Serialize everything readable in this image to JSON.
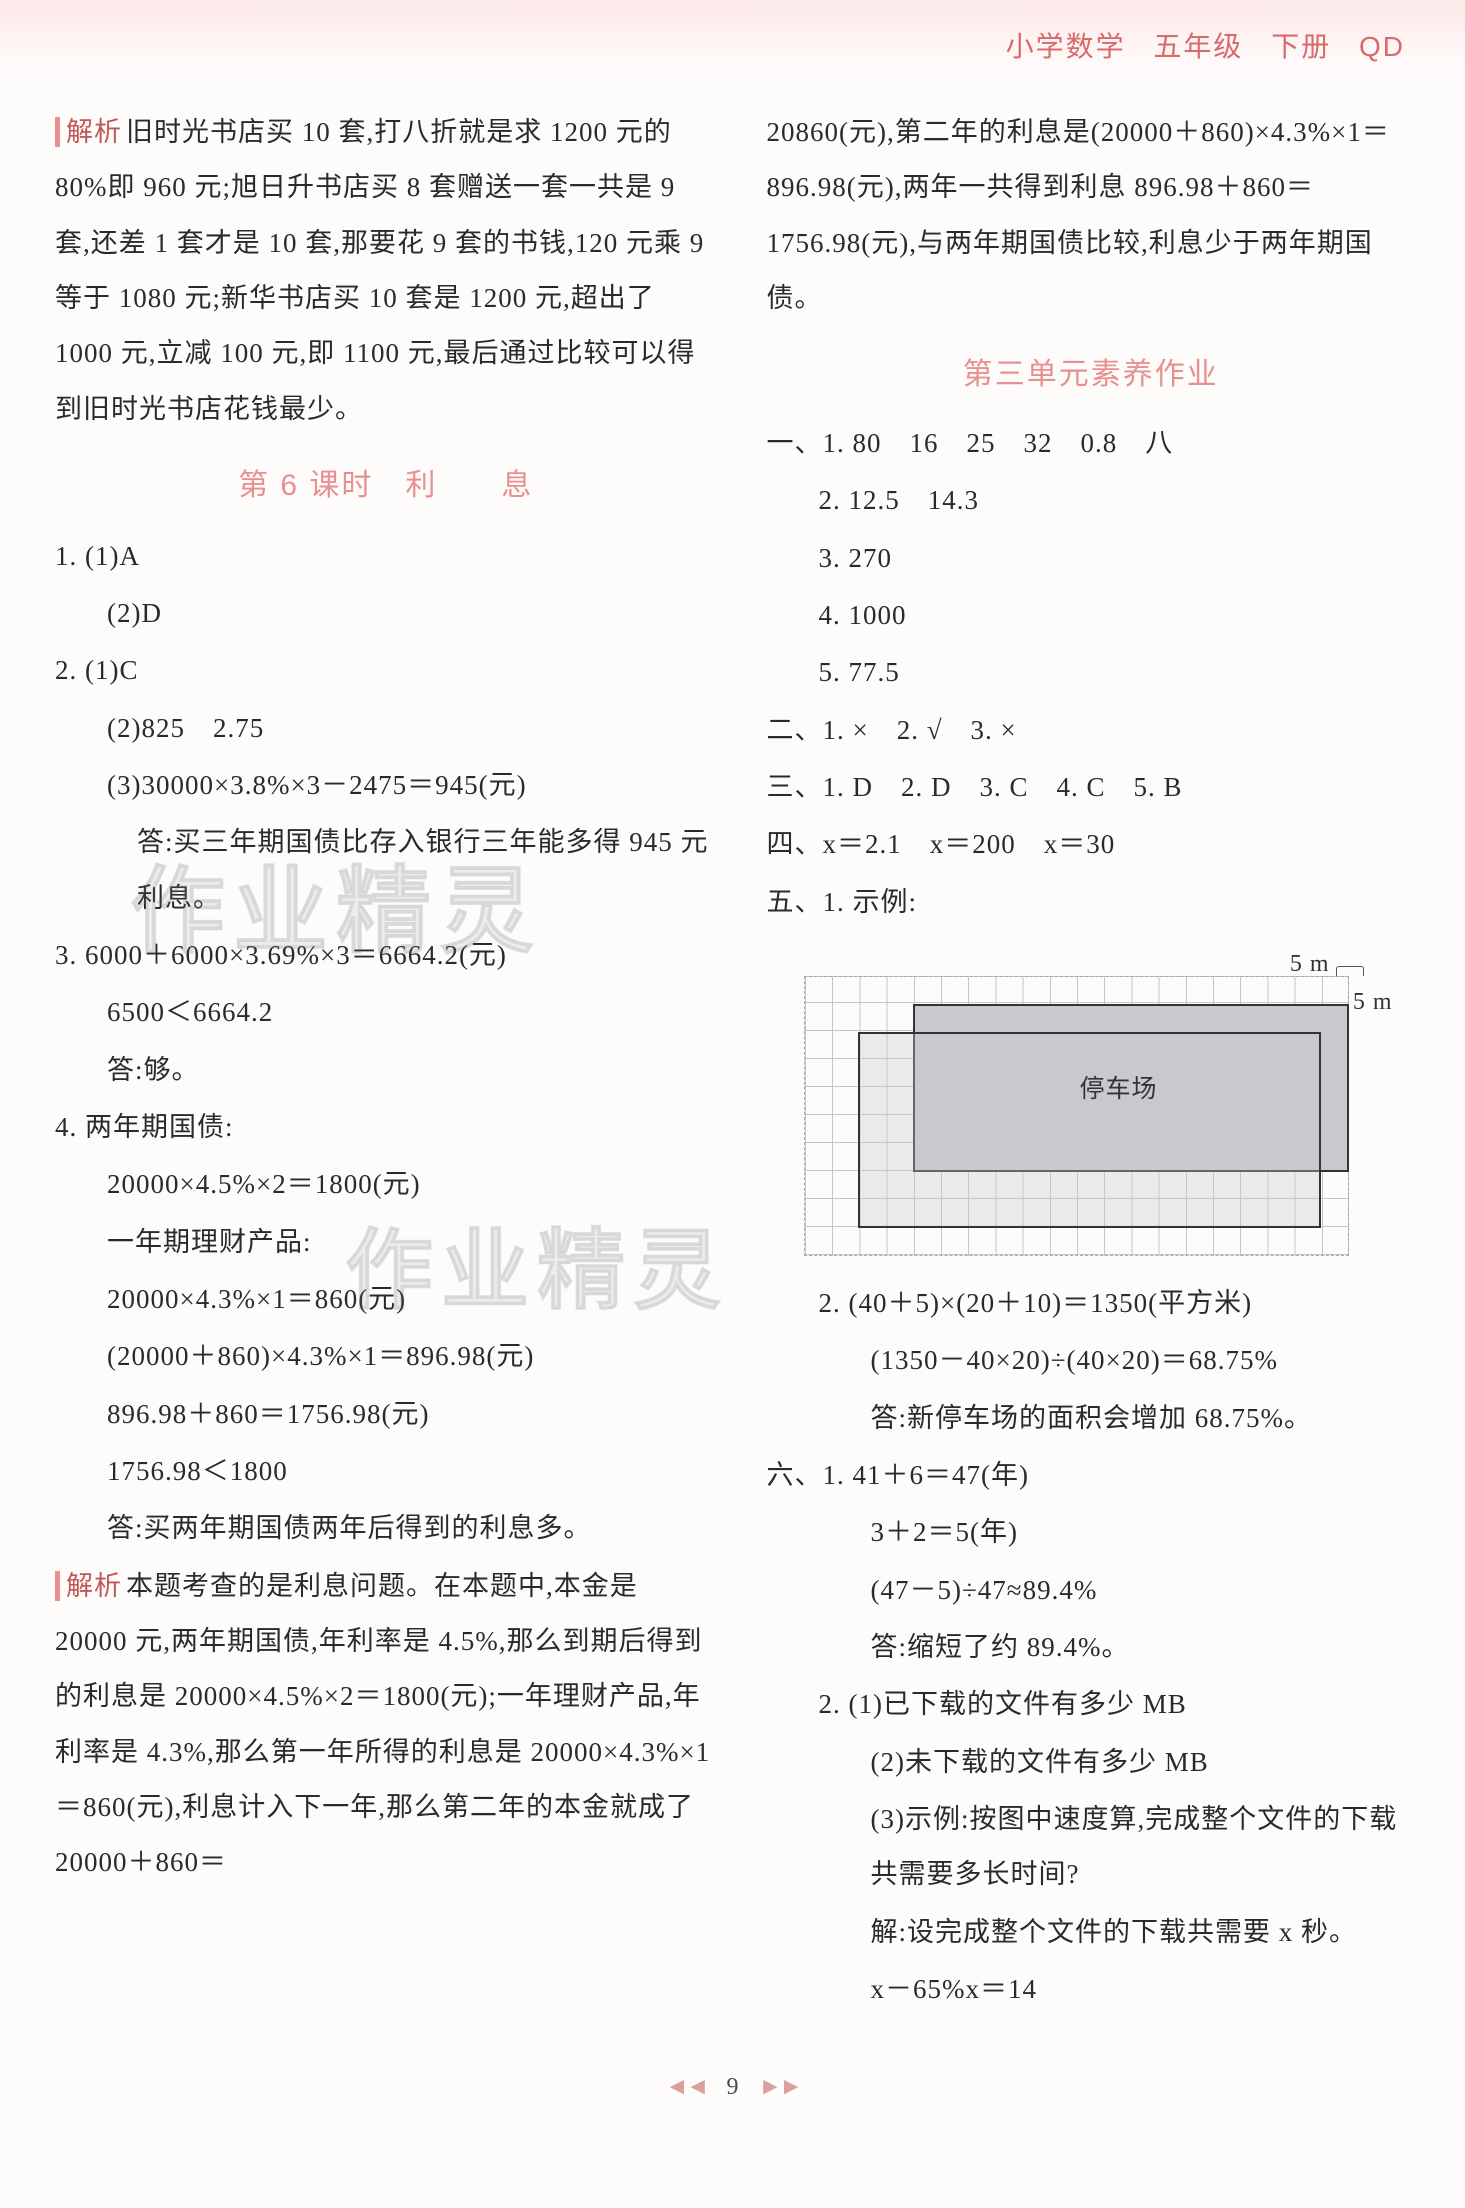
{
  "header": {
    "subject": "小学数学",
    "grade": "五年级",
    "volume": "下册",
    "code": "QD"
  },
  "watermark": "作业精灵",
  "page_number": "9",
  "left": {
    "analysis1_label": "解析",
    "analysis1_text": "旧时光书店买 10 套,打八折就是求 1200 元的 80%即 960 元;旭日升书店买 8 套赠送一套一共是 9 套,还差 1 套才是 10 套,那要花 9 套的书钱,120 元乘 9 等于 1080 元;新华书店买 10 套是 1200 元,超出了 1000 元,立减 100 元,即 1100 元,最后通过比较可以得到旧时光书店花钱最少。",
    "section_title": "第 6 课时　利　　息",
    "q1_1": "1. (1)A",
    "q1_2": "(2)D",
    "q2_1": "2. (1)C",
    "q2_2": "(2)825　2.75",
    "q2_3": "(3)30000×3.8%×3－2475＝945(元)",
    "q2_ans": "答:买三年期国债比存入银行三年能多得 945 元利息。",
    "q3_1": "3. 6000＋6000×3.69%×3＝6664.2(元)",
    "q3_2": "6500＜6664.2",
    "q3_3": "答:够。",
    "q4_1": "4. 两年期国债:",
    "q4_2": "20000×4.5%×2＝1800(元)",
    "q4_3": "一年期理财产品:",
    "q4_4": "20000×4.3%×1＝860(元)",
    "q4_5": "(20000＋860)×4.3%×1＝896.98(元)",
    "q4_6": "896.98＋860＝1756.98(元)",
    "q4_7": "1756.98＜1800",
    "q4_8": "答:买两年期国债两年后得到的利息多。",
    "analysis2_label": "解析",
    "analysis2_text": "本题考查的是利息问题。在本题中,本金是 20000 元,两年期国债,年利率是 4.5%,那么到期后得到的利息是 20000×4.5%×2＝1800(元);一年理财产品,年利率是 4.3%,那么第一年所得的利息是 20000×4.3%×1＝860(元),利息计入下一年,那么第二年的本金就成了 20000＋860＝"
  },
  "right": {
    "cont_text": "20860(元),第二年的利息是(20000＋860)×4.3%×1＝896.98(元),两年一共得到利息 896.98＋860＝1756.98(元),与两年期国债比较,利息少于两年期国债。",
    "section_title": "第三单元素养作业",
    "s1_label": "一、",
    "s1_1": "1. 80　16　25　32　0.8　八",
    "s1_2": "2. 12.5　14.3",
    "s1_3": "3. 270",
    "s1_4": "4. 1000",
    "s1_5": "5. 77.5",
    "s2": "二、1. ×　2. √　3. ×",
    "s3": "三、1. D　2. D　3. C　4. C　5. B",
    "s4": "四、x＝2.1　x＝200　x＝30",
    "s5_label": "五、",
    "s5_1": "1. 示例:",
    "diagram": {
      "park_label": "停车场",
      "dim_top": "5 m",
      "dim_side": "5 m"
    },
    "s5_2_1": "2. (40＋5)×(20＋10)＝1350(平方米)",
    "s5_2_2": "(1350－40×20)÷(40×20)＝68.75%",
    "s5_2_3": "答:新停车场的面积会增加 68.75%。",
    "s6_label": "六、",
    "s6_1_1": "1. 41＋6＝47(年)",
    "s6_1_2": "3＋2＝5(年)",
    "s6_1_3": "(47－5)÷47≈89.4%",
    "s6_1_4": "答:缩短了约 89.4%。",
    "s6_2_1": "2. (1)已下载的文件有多少 MB",
    "s6_2_2": "(2)未下载的文件有多少 MB",
    "s6_2_3": "(3)示例:按图中速度算,完成整个文件的下载共需要多长时间?",
    "s6_2_4": "解:设完成整个文件的下载共需要 x 秒。",
    "s6_2_5": "x－65%x＝14"
  }
}
